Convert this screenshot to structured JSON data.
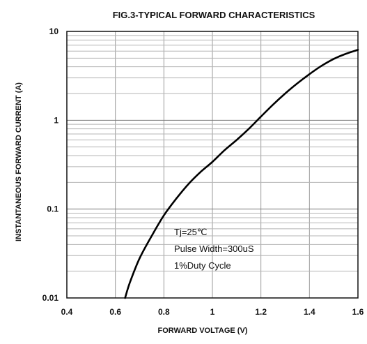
{
  "chart_data": {
    "type": "line",
    "title": "FIG.3-TYPICAL FORWARD CHARACTERISTICS",
    "xlabel": "FORWARD VOLTAGE (V)",
    "ylabel": "INSTANTANEOUS FORWARD CURRENT (A)",
    "xlim": [
      0.4,
      1.6
    ],
    "ylim": [
      0.01,
      10
    ],
    "yscale": "log",
    "grid": true,
    "x_ticks": [
      "0.4",
      "0.6",
      "0.8",
      "1",
      "1.2",
      "1.4",
      "1.6"
    ],
    "y_ticks": [
      "0.01",
      "0.1",
      "1",
      "10"
    ],
    "annotations": [
      "Tj=25℃",
      "Pulse Width=300uS",
      "1%Duty  Cycle"
    ],
    "series": [
      {
        "color": "#000000",
        "x": [
          0.64,
          0.66,
          0.7,
          0.75,
          0.8,
          0.85,
          0.9,
          0.95,
          1.0,
          1.05,
          1.1,
          1.15,
          1.2,
          1.25,
          1.3,
          1.35,
          1.4,
          1.45,
          1.5,
          1.55,
          1.6
        ],
        "y": [
          0.01,
          0.015,
          0.028,
          0.05,
          0.085,
          0.13,
          0.19,
          0.26,
          0.34,
          0.46,
          0.6,
          0.8,
          1.1,
          1.5,
          2.0,
          2.6,
          3.3,
          4.1,
          4.9,
          5.6,
          6.2
        ]
      }
    ]
  }
}
